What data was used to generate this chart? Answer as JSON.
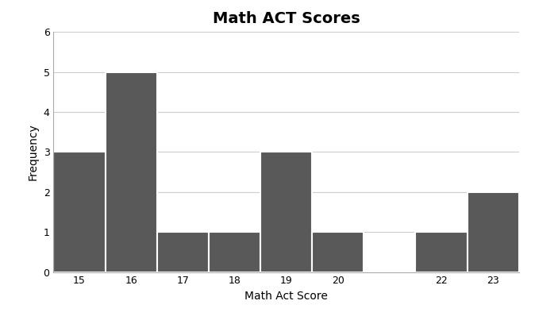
{
  "title": "Math ACT Scores",
  "xlabel": "Math Act Score",
  "ylabel": "Frequency",
  "scores": [
    15,
    16,
    17,
    18,
    19,
    20,
    21,
    22,
    23
  ],
  "frequencies": [
    3,
    5,
    1,
    1,
    3,
    1,
    0,
    1,
    2
  ],
  "bar_color": "#595959",
  "bar_edge_color": "#ffffff",
  "ylim": [
    0,
    6
  ],
  "yticks": [
    0,
    1,
    2,
    3,
    4,
    5,
    6
  ],
  "xtick_labels": [
    "15",
    "16",
    "17",
    "18",
    "19",
    "20",
    "22",
    "23"
  ],
  "xtick_positions": [
    15,
    16,
    17,
    18,
    19,
    20,
    22,
    23
  ],
  "background_color": "#ffffff",
  "grid_color": "#cccccc",
  "title_fontsize": 14,
  "label_fontsize": 10,
  "tick_fontsize": 9,
  "bar_width": 1.0,
  "xlim": [
    14.5,
    23.5
  ]
}
